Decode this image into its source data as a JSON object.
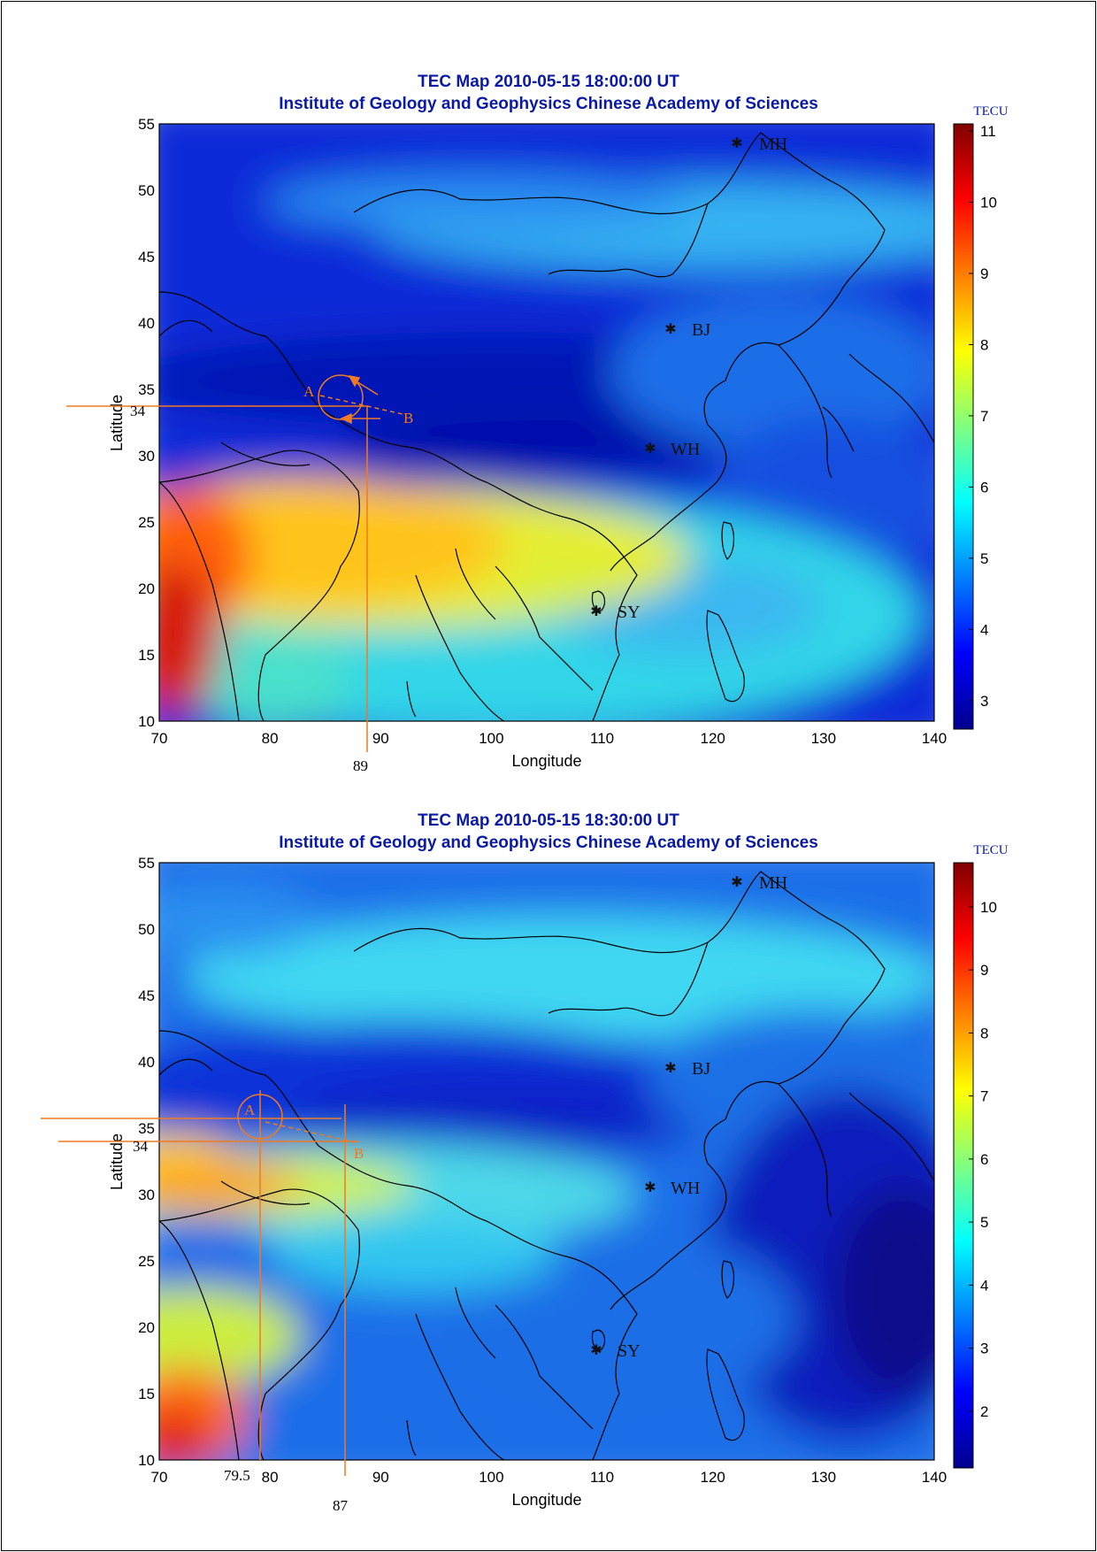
{
  "maps": [
    {
      "title_line1": "TEC Map 2010-05-15 18:00:00 UT",
      "title_line2": "Institute of Geology and Geophysics Chinese Academy of Sciences",
      "xlabel": "Longitude",
      "ylabel": "Latitude",
      "x_ticks": [
        "70",
        "80",
        "90",
        "100",
        "110",
        "120",
        "130",
        "140"
      ],
      "y_ticks": [
        "10",
        "15",
        "20",
        "25",
        "30",
        "35",
        "40",
        "45",
        "50",
        "55"
      ],
      "colorbar_unit": "TECU",
      "colorbar_ticks": [
        "3",
        "4",
        "5",
        "6",
        "7",
        "8",
        "9",
        "10",
        "11"
      ],
      "colorbar_range": [
        2.6,
        11.1
      ],
      "stations": [
        {
          "label": "MH",
          "lon": 122.4,
          "lat": 53.5
        },
        {
          "label": "BJ",
          "lon": 116.4,
          "lat": 39.6
        },
        {
          "label": "WH",
          "lon": 114.4,
          "lat": 30.5
        },
        {
          "label": "SY",
          "lon": 109.5,
          "lat": 18.3
        }
      ],
      "annotation": {
        "point_a": "A",
        "point_b": "B",
        "lat_mark": "34",
        "lon_marks": [
          "89"
        ]
      }
    },
    {
      "title_line1": "TEC Map 2010-05-15 18:30:00 UT",
      "title_line2": "Institute of Geology and Geophysics Chinese Academy of Sciences",
      "xlabel": "Longitude",
      "ylabel": "Latitude",
      "x_ticks": [
        "70",
        "80",
        "90",
        "100",
        "110",
        "120",
        "130",
        "140"
      ],
      "y_ticks": [
        "10",
        "15",
        "20",
        "25",
        "30",
        "35",
        "40",
        "45",
        "50",
        "55"
      ],
      "colorbar_unit": "TECU",
      "colorbar_ticks": [
        "2",
        "3",
        "4",
        "5",
        "6",
        "7",
        "8",
        "9",
        "10"
      ],
      "colorbar_range": [
        1.1,
        10.7
      ],
      "stations": [
        {
          "label": "MH",
          "lon": 122.4,
          "lat": 53.5
        },
        {
          "label": "BJ",
          "lon": 116.4,
          "lat": 39.6
        },
        {
          "label": "WH",
          "lon": 114.4,
          "lat": 30.5
        },
        {
          "label": "SY",
          "lon": 109.5,
          "lat": 18.3
        }
      ],
      "annotation": {
        "point_a": "A",
        "point_b": "B",
        "lat_mark": "34",
        "lon_marks": [
          "79.5",
          "87"
        ]
      }
    }
  ],
  "colors": {
    "title": "#0a1aa6",
    "annotation": "#f07a22",
    "station_label": "#111111"
  }
}
